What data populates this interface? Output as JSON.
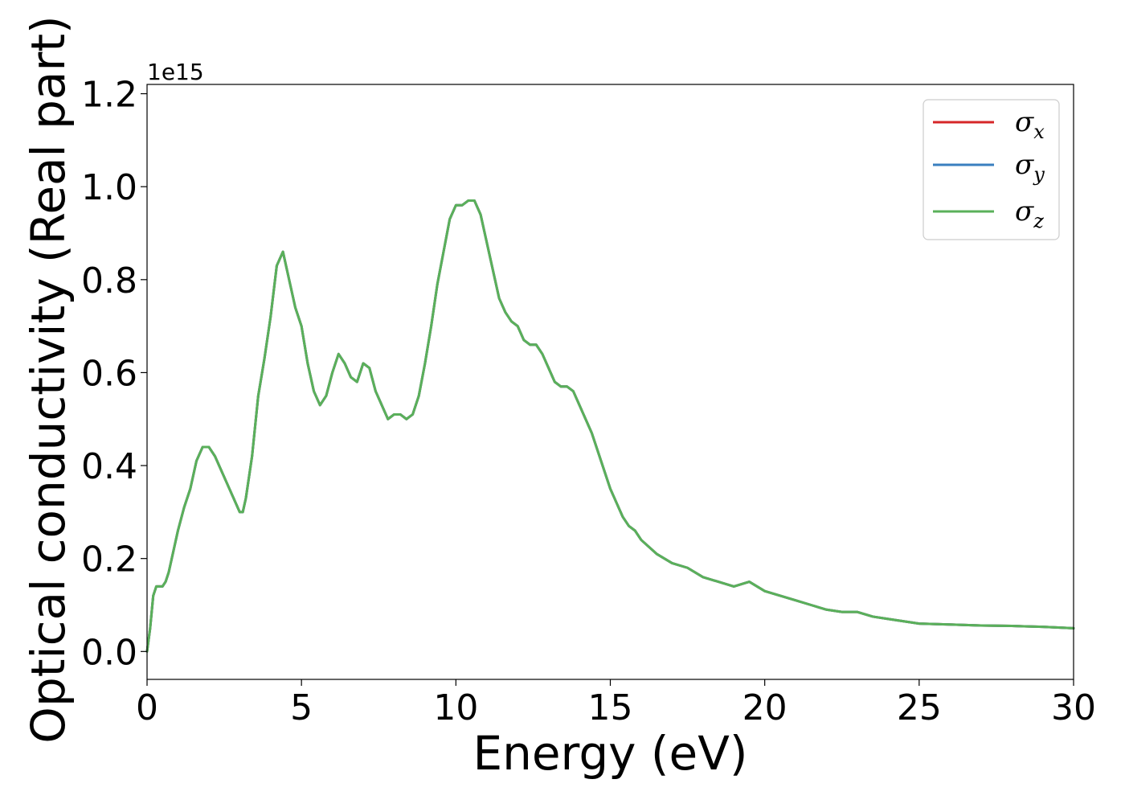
{
  "chart_data": {
    "type": "line",
    "xlabel": "Energy (eV)",
    "ylabel": "Optical conductivity (Real part)",
    "y_offset_text": "1e15",
    "xlim": [
      0,
      30
    ],
    "ylim": [
      -0.06,
      1.22
    ],
    "x_ticks": [
      0,
      5,
      10,
      15,
      20,
      25,
      30
    ],
    "x_tick_labels": [
      "0",
      "5",
      "10",
      "15",
      "20",
      "25",
      "30"
    ],
    "y_ticks": [
      0.0,
      0.2,
      0.4,
      0.6,
      0.8,
      1.0,
      1.2
    ],
    "y_tick_labels": [
      "0.0",
      "0.2",
      "0.4",
      "0.6",
      "0.8",
      "1.0",
      "1.2"
    ],
    "grid": false,
    "legend_position": "top-right",
    "colors": {
      "sigma_x": "#d62728",
      "sigma_y": "#3a7fbf",
      "sigma_z": "#5ab05a"
    },
    "legend": [
      {
        "key": "sigma_x",
        "symbol": "σ",
        "sub": "x"
      },
      {
        "key": "sigma_y",
        "symbol": "σ",
        "sub": "y"
      },
      {
        "key": "sigma_z",
        "symbol": "σ",
        "sub": "z"
      }
    ],
    "x": [
      0,
      0.1,
      0.2,
      0.3,
      0.4,
      0.5,
      0.6,
      0.7,
      0.8,
      1.0,
      1.2,
      1.4,
      1.6,
      1.8,
      2.0,
      2.2,
      2.4,
      2.6,
      2.8,
      3.0,
      3.1,
      3.2,
      3.4,
      3.6,
      3.8,
      4.0,
      4.2,
      4.4,
      4.6,
      4.8,
      5.0,
      5.2,
      5.4,
      5.6,
      5.8,
      6.0,
      6.2,
      6.4,
      6.6,
      6.8,
      7.0,
      7.2,
      7.4,
      7.6,
      7.8,
      8.0,
      8.2,
      8.4,
      8.6,
      8.8,
      9.0,
      9.2,
      9.4,
      9.6,
      9.8,
      10.0,
      10.2,
      10.4,
      10.6,
      10.8,
      11.0,
      11.2,
      11.4,
      11.6,
      11.8,
      12.0,
      12.2,
      12.4,
      12.6,
      12.8,
      13.0,
      13.2,
      13.4,
      13.6,
      13.8,
      14.0,
      14.2,
      14.4,
      14.6,
      14.8,
      15.0,
      15.2,
      15.4,
      15.6,
      15.8,
      16.0,
      16.5,
      17.0,
      17.5,
      18.0,
      18.5,
      19.0,
      19.5,
      20.0,
      20.5,
      21.0,
      21.5,
      22.0,
      22.5,
      23.0,
      23.5,
      24.0,
      24.5,
      25.0,
      26.0,
      27.0,
      28.0,
      29.0,
      30.0
    ],
    "series": [
      {
        "key": "sigma_x",
        "values": [
          0.0,
          0.05,
          0.12,
          0.14,
          0.14,
          0.14,
          0.15,
          0.17,
          0.2,
          0.26,
          0.31,
          0.35,
          0.41,
          0.44,
          0.44,
          0.42,
          0.39,
          0.36,
          0.33,
          0.3,
          0.3,
          0.33,
          0.42,
          0.55,
          0.63,
          0.72,
          0.83,
          0.86,
          0.8,
          0.74,
          0.7,
          0.62,
          0.56,
          0.53,
          0.55,
          0.6,
          0.64,
          0.62,
          0.59,
          0.58,
          0.62,
          0.61,
          0.56,
          0.53,
          0.5,
          0.51,
          0.51,
          0.5,
          0.51,
          0.55,
          0.62,
          0.7,
          0.79,
          0.86,
          0.93,
          0.96,
          0.96,
          0.97,
          0.97,
          0.94,
          0.88,
          0.82,
          0.76,
          0.73,
          0.71,
          0.7,
          0.67,
          0.66,
          0.66,
          0.64,
          0.61,
          0.58,
          0.57,
          0.57,
          0.56,
          0.53,
          0.5,
          0.47,
          0.43,
          0.39,
          0.35,
          0.32,
          0.29,
          0.27,
          0.26,
          0.24,
          0.21,
          0.19,
          0.18,
          0.16,
          0.15,
          0.14,
          0.15,
          0.13,
          0.12,
          0.11,
          0.1,
          0.09,
          0.085,
          0.085,
          0.075,
          0.07,
          0.065,
          0.06,
          0.058,
          0.056,
          0.055,
          0.053,
          0.05
        ]
      },
      {
        "key": "sigma_y",
        "values": [
          0.0,
          0.05,
          0.12,
          0.14,
          0.14,
          0.14,
          0.15,
          0.17,
          0.2,
          0.26,
          0.31,
          0.35,
          0.41,
          0.44,
          0.44,
          0.42,
          0.39,
          0.36,
          0.33,
          0.3,
          0.3,
          0.33,
          0.42,
          0.55,
          0.63,
          0.72,
          0.83,
          0.86,
          0.8,
          0.74,
          0.7,
          0.62,
          0.56,
          0.53,
          0.55,
          0.6,
          0.64,
          0.62,
          0.59,
          0.58,
          0.62,
          0.61,
          0.56,
          0.53,
          0.5,
          0.51,
          0.51,
          0.5,
          0.51,
          0.55,
          0.62,
          0.7,
          0.79,
          0.86,
          0.93,
          0.96,
          0.96,
          0.97,
          0.97,
          0.94,
          0.88,
          0.82,
          0.76,
          0.73,
          0.71,
          0.7,
          0.67,
          0.66,
          0.66,
          0.64,
          0.61,
          0.58,
          0.57,
          0.57,
          0.56,
          0.53,
          0.5,
          0.47,
          0.43,
          0.39,
          0.35,
          0.32,
          0.29,
          0.27,
          0.26,
          0.24,
          0.21,
          0.19,
          0.18,
          0.16,
          0.15,
          0.14,
          0.15,
          0.13,
          0.12,
          0.11,
          0.1,
          0.09,
          0.085,
          0.085,
          0.075,
          0.07,
          0.065,
          0.06,
          0.058,
          0.056,
          0.055,
          0.053,
          0.05
        ]
      },
      {
        "key": "sigma_z",
        "values": [
          0.0,
          0.05,
          0.12,
          0.14,
          0.14,
          0.14,
          0.15,
          0.17,
          0.2,
          0.26,
          0.31,
          0.35,
          0.41,
          0.44,
          0.44,
          0.42,
          0.39,
          0.36,
          0.33,
          0.3,
          0.3,
          0.33,
          0.42,
          0.55,
          0.63,
          0.72,
          0.83,
          0.86,
          0.8,
          0.74,
          0.7,
          0.62,
          0.56,
          0.53,
          0.55,
          0.6,
          0.64,
          0.62,
          0.59,
          0.58,
          0.62,
          0.61,
          0.56,
          0.53,
          0.5,
          0.51,
          0.51,
          0.5,
          0.51,
          0.55,
          0.62,
          0.7,
          0.79,
          0.86,
          0.93,
          0.96,
          0.96,
          0.97,
          0.97,
          0.94,
          0.88,
          0.82,
          0.76,
          0.73,
          0.71,
          0.7,
          0.67,
          0.66,
          0.66,
          0.64,
          0.61,
          0.58,
          0.57,
          0.57,
          0.56,
          0.53,
          0.5,
          0.47,
          0.43,
          0.39,
          0.35,
          0.32,
          0.29,
          0.27,
          0.26,
          0.24,
          0.21,
          0.19,
          0.18,
          0.16,
          0.15,
          0.14,
          0.15,
          0.13,
          0.12,
          0.11,
          0.1,
          0.09,
          0.085,
          0.085,
          0.075,
          0.07,
          0.065,
          0.06,
          0.058,
          0.056,
          0.055,
          0.053,
          0.05
        ]
      }
    ]
  }
}
